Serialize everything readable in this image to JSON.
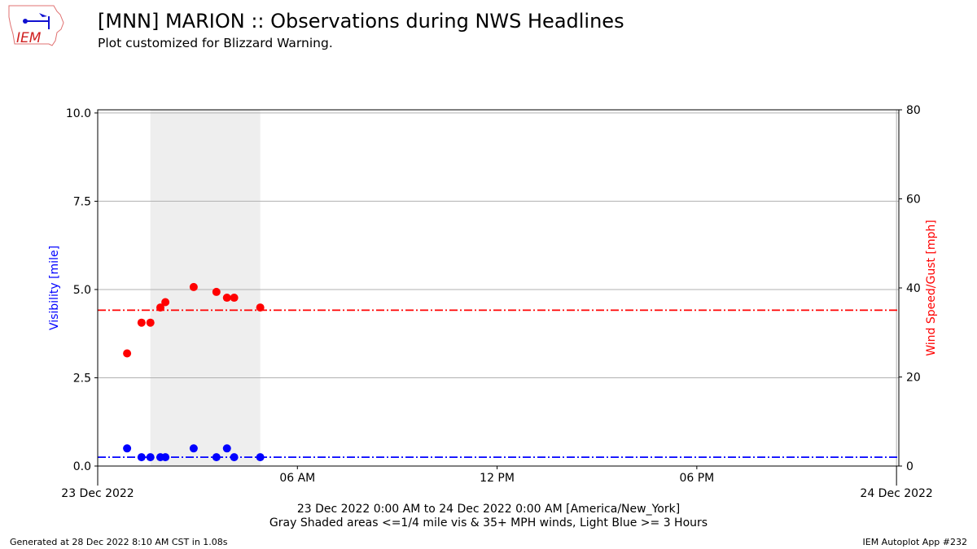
{
  "header": {
    "title": "[MNN] MARION :: Observations during NWS Headlines",
    "subtitle": "Plot customized for Blizzard Warning.",
    "logo_text": "IEM"
  },
  "footer": {
    "left": "Generated at 28 Dec 2022 8:10 AM CST in 1.08s",
    "right": "IEM Autoplot App #232"
  },
  "chart_data": {
    "type": "scatter",
    "xlabel": "23 Dec 2022 0:00 AM to 24 Dec 2022 0:00 AM [America/New_York]",
    "xlabel2": "Gray Shaded areas <=1/4 mile vis & 35+ MPH winds, Light Blue >= 3 Hours",
    "ylabel": "Visibility [mile]",
    "y2label": "Wind Speed/Gust [mph]",
    "xlim_hours": [
      0,
      24.07
    ],
    "ylim": [
      0,
      10.09
    ],
    "y2lim": [
      0,
      80
    ],
    "x_ticks": [
      {
        "h": 0,
        "label": "23 Dec 2022"
      },
      {
        "h": 6,
        "label": "06 AM"
      },
      {
        "h": 12,
        "label": "12 PM"
      },
      {
        "h": 18,
        "label": "06 PM"
      },
      {
        "h": 24,
        "label": "24 Dec 2022"
      }
    ],
    "y_ticks": [
      0,
      2.5,
      5,
      7.5,
      10
    ],
    "y_tick_labels": [
      "0.0",
      "2.5",
      "5.0",
      "7.5",
      "10.0"
    ],
    "y2_ticks": [
      0,
      20,
      40,
      60,
      80
    ],
    "y2_tick_labels": [
      "0",
      "20",
      "40",
      "60",
      "80"
    ],
    "grid": true,
    "shaded": [
      {
        "start": "01:35",
        "end": "04:53",
        "color": "#eeeeee"
      }
    ],
    "times": [
      "00:53",
      "01:19",
      "01:35",
      "01:53",
      "02:02",
      "02:53",
      "03:34",
      "03:53",
      "04:06",
      "04:53"
    ],
    "visibility": [
      0.5,
      0.25,
      0.25,
      0.25,
      0.25,
      0.5,
      0.25,
      0.5,
      0.25,
      0.25
    ],
    "wind": [
      25.3,
      32.2,
      32.2,
      35.6,
      36.8,
      40.2,
      39.1,
      37.8,
      37.8,
      35.6
    ],
    "vis_threshold": 0.25,
    "wind_threshold": 35,
    "colors": {
      "visibility": "#0000ff",
      "wind": "#ff0000",
      "grid": "#b0b0b0"
    }
  }
}
